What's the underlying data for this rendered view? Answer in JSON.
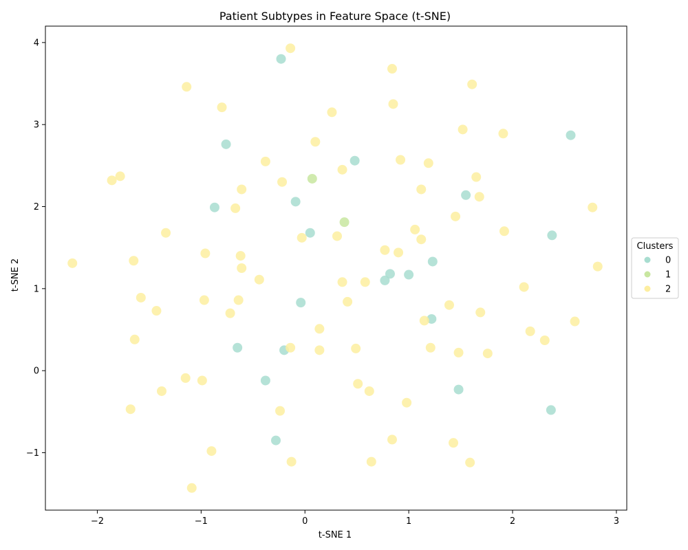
{
  "chart_data": {
    "type": "scatter",
    "title": "Patient Subtypes in Feature Space (t-SNE)",
    "xlabel": "t-SNE 1",
    "ylabel": "t-SNE 2",
    "xlim": [
      -2.5,
      3.1
    ],
    "ylim": [
      -1.7,
      4.2
    ],
    "x_ticks": [
      -2,
      -1,
      0,
      1,
      2,
      3
    ],
    "y_ticks": [
      -1,
      0,
      1,
      2,
      3,
      4
    ],
    "grid": false,
    "legend": {
      "title": "Clusters",
      "position": "right-center"
    },
    "series": [
      {
        "name": "0",
        "color": "#a8ddd0",
        "points": [
          [
            -0.23,
            3.8
          ],
          [
            -0.76,
            2.76
          ],
          [
            0.48,
            2.56
          ],
          [
            2.56,
            2.87
          ],
          [
            -0.09,
            2.06
          ],
          [
            -0.87,
            1.99
          ],
          [
            1.55,
            2.14
          ],
          [
            0.05,
            1.68
          ],
          [
            2.38,
            1.65
          ],
          [
            1.23,
            1.33
          ],
          [
            0.82,
            1.18
          ],
          [
            1.0,
            1.17
          ],
          [
            0.77,
            1.1
          ],
          [
            -0.04,
            0.83
          ],
          [
            1.22,
            0.63
          ],
          [
            -0.65,
            0.28
          ],
          [
            -0.2,
            0.25
          ],
          [
            -0.38,
            -0.12
          ],
          [
            1.48,
            -0.23
          ],
          [
            2.37,
            -0.48
          ],
          [
            -0.28,
            -0.85
          ]
        ]
      },
      {
        "name": "1",
        "color": "#c8e6a0",
        "points": [
          [
            0.07,
            2.34
          ],
          [
            0.38,
            1.81
          ]
        ]
      },
      {
        "name": "2",
        "color": "#fdeea0",
        "points": [
          [
            -0.14,
            3.93
          ],
          [
            0.84,
            3.68
          ],
          [
            1.61,
            3.49
          ],
          [
            -1.14,
            3.46
          ],
          [
            -0.8,
            3.21
          ],
          [
            0.85,
            3.25
          ],
          [
            0.26,
            3.15
          ],
          [
            1.52,
            2.94
          ],
          [
            1.91,
            2.89
          ],
          [
            0.1,
            2.79
          ],
          [
            -0.38,
            2.55
          ],
          [
            0.92,
            2.57
          ],
          [
            0.36,
            2.45
          ],
          [
            1.19,
            2.53
          ],
          [
            -1.86,
            2.32
          ],
          [
            -1.78,
            2.37
          ],
          [
            -0.22,
            2.3
          ],
          [
            1.65,
            2.36
          ],
          [
            -0.61,
            2.21
          ],
          [
            1.12,
            2.21
          ],
          [
            1.68,
            2.12
          ],
          [
            -0.67,
            1.98
          ],
          [
            2.77,
            1.99
          ],
          [
            1.45,
            1.88
          ],
          [
            -1.34,
            1.68
          ],
          [
            1.06,
            1.72
          ],
          [
            1.92,
            1.7
          ],
          [
            -0.03,
            1.62
          ],
          [
            0.31,
            1.64
          ],
          [
            1.12,
            1.6
          ],
          [
            -2.24,
            1.31
          ],
          [
            -1.65,
            1.34
          ],
          [
            -0.96,
            1.43
          ],
          [
            -0.62,
            1.4
          ],
          [
            0.77,
            1.47
          ],
          [
            0.9,
            1.44
          ],
          [
            -0.61,
            1.25
          ],
          [
            2.82,
            1.27
          ],
          [
            -0.44,
            1.11
          ],
          [
            0.36,
            1.08
          ],
          [
            0.58,
            1.08
          ],
          [
            2.11,
            1.02
          ],
          [
            -1.58,
            0.89
          ],
          [
            -0.97,
            0.86
          ],
          [
            -0.64,
            0.86
          ],
          [
            0.41,
            0.84
          ],
          [
            1.39,
            0.8
          ],
          [
            -1.43,
            0.73
          ],
          [
            -0.72,
            0.7
          ],
          [
            1.69,
            0.71
          ],
          [
            1.15,
            0.61
          ],
          [
            2.6,
            0.6
          ],
          [
            0.14,
            0.51
          ],
          [
            2.17,
            0.48
          ],
          [
            -1.64,
            0.38
          ],
          [
            2.31,
            0.37
          ],
          [
            -0.14,
            0.28
          ],
          [
            0.14,
            0.25
          ],
          [
            0.49,
            0.27
          ],
          [
            1.21,
            0.28
          ],
          [
            1.48,
            0.22
          ],
          [
            1.76,
            0.21
          ],
          [
            -1.15,
            -0.09
          ],
          [
            -0.99,
            -0.12
          ],
          [
            0.51,
            -0.16
          ],
          [
            -1.38,
            -0.25
          ],
          [
            0.62,
            -0.25
          ],
          [
            0.98,
            -0.39
          ],
          [
            -1.68,
            -0.47
          ],
          [
            -0.24,
            -0.49
          ],
          [
            0.84,
            -0.84
          ],
          [
            1.43,
            -0.88
          ],
          [
            -0.9,
            -0.98
          ],
          [
            -0.13,
            -1.11
          ],
          [
            0.64,
            -1.11
          ],
          [
            1.59,
            -1.12
          ],
          [
            -1.09,
            -1.43
          ]
        ]
      }
    ]
  }
}
